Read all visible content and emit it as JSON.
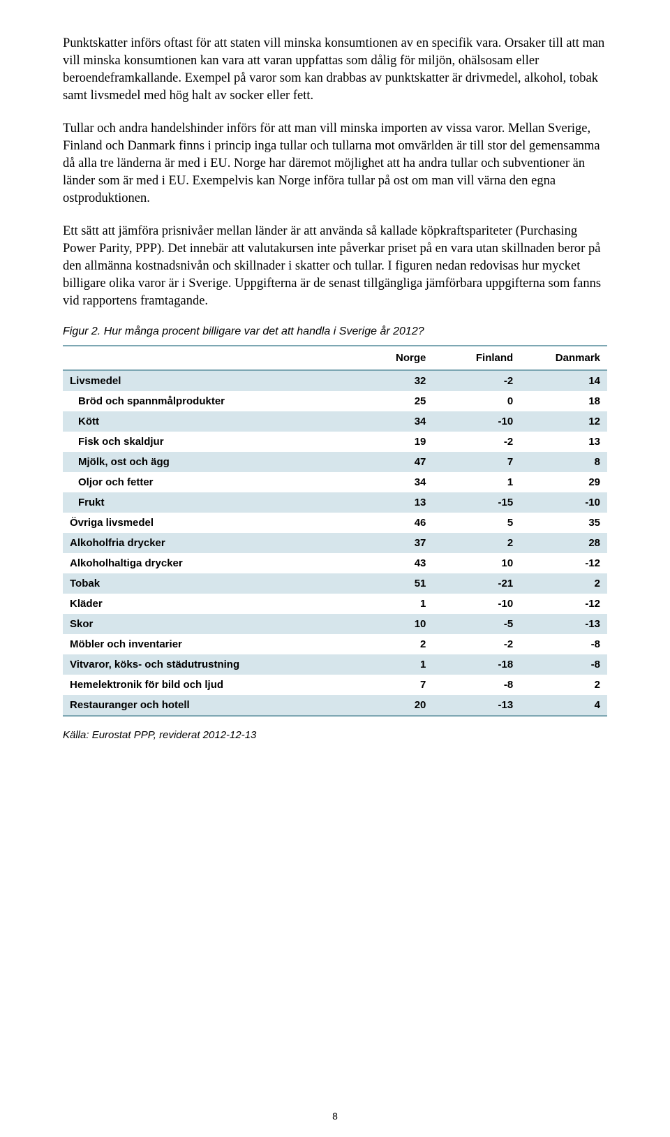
{
  "paragraphs": {
    "p1": "Punktskatter införs oftast för att staten vill minska konsumtionen av en specifik vara. Orsaker till att man vill minska konsumtionen kan vara att varan uppfattas som dålig för miljön, ohälsosam eller beroendeframkallande. Exempel på varor som kan drabbas av punktskatter är drivmedel, alkohol, tobak samt livsmedel med hög halt av socker eller fett.",
    "p2": "Tullar och andra handelshinder införs för att man vill minska importen av vissa varor. Mellan Sverige, Finland och Danmark finns i princip inga tullar och tullarna mot omvärlden är till stor del gemensamma då alla tre länderna är med i EU. Norge har däremot möjlighet att ha andra tullar och subventioner än länder som är med i EU. Exempelvis kan Norge införa tullar på ost om man vill värna den egna ostproduktionen.",
    "p3": "Ett sätt att jämföra prisnivåer mellan länder är att använda så kallade köpkraftspariteter (Purchasing Power Parity, PPP). Det innebär att valutakursen inte påverkar priset på en vara utan skillnaden beror på den allmänna kostnadsnivån och skillnader i skatter och tullar. I figuren nedan redovisas hur mycket billigare olika varor är i Sverige. Uppgifterna är de senast tillgängliga jämförbara uppgifterna som fanns vid rapportens framtagande."
  },
  "figure_caption": "Figur 2. Hur många procent billigare var det att handla i Sverige år 2012?",
  "table": {
    "type": "table",
    "columns": [
      "",
      "Norge",
      "Finland",
      "Danmark"
    ],
    "header_font_weight": "bold",
    "row_shade_color": "#d6e5eb",
    "border_color": "#7da7b3",
    "background_color": "#ffffff",
    "font_family": "Arial",
    "font_size_pt": 11,
    "rows": [
      {
        "label": "Livsmedel",
        "values": [
          "32",
          "-2",
          "14"
        ],
        "shaded": true,
        "bold": true,
        "indent": false
      },
      {
        "label": "Bröd och spannmålprodukter",
        "values": [
          "25",
          "0",
          "18"
        ],
        "shaded": false,
        "bold": true,
        "indent": true
      },
      {
        "label": "Kött",
        "values": [
          "34",
          "-10",
          "12"
        ],
        "shaded": true,
        "bold": true,
        "indent": true
      },
      {
        "label": "Fisk och skaldjur",
        "values": [
          "19",
          "-2",
          "13"
        ],
        "shaded": false,
        "bold": true,
        "indent": true
      },
      {
        "label": "Mjölk, ost och ägg",
        "values": [
          "47",
          "7",
          "8"
        ],
        "shaded": true,
        "bold": true,
        "indent": true
      },
      {
        "label": "Oljor och fetter",
        "values": [
          "34",
          "1",
          "29"
        ],
        "shaded": false,
        "bold": true,
        "indent": true
      },
      {
        "label": "Frukt",
        "values": [
          "13",
          "-15",
          "-10"
        ],
        "shaded": true,
        "bold": true,
        "indent": true
      },
      {
        "label": "Övriga livsmedel",
        "values": [
          "46",
          "5",
          "35"
        ],
        "shaded": false,
        "bold": true,
        "indent": false
      },
      {
        "label": "Alkoholfria drycker",
        "values": [
          "37",
          "2",
          "28"
        ],
        "shaded": true,
        "bold": true,
        "indent": false
      },
      {
        "label": "Alkoholhaltiga drycker",
        "values": [
          "43",
          "10",
          "-12"
        ],
        "shaded": false,
        "bold": true,
        "indent": false
      },
      {
        "label": "Tobak",
        "values": [
          "51",
          "-21",
          "2"
        ],
        "shaded": true,
        "bold": true,
        "indent": false
      },
      {
        "label": "Kläder",
        "values": [
          "1",
          "-10",
          "-12"
        ],
        "shaded": false,
        "bold": true,
        "indent": false
      },
      {
        "label": "Skor",
        "values": [
          "10",
          "-5",
          "-13"
        ],
        "shaded": true,
        "bold": true,
        "indent": false
      },
      {
        "label": "Möbler och inventarier",
        "values": [
          "2",
          "-2",
          "-8"
        ],
        "shaded": false,
        "bold": true,
        "indent": false
      },
      {
        "label": "Vitvaror, köks- och städutrustning",
        "values": [
          "1",
          "-18",
          "-8"
        ],
        "shaded": true,
        "bold": true,
        "indent": false
      },
      {
        "label": "Hemelektronik för bild och ljud",
        "values": [
          "7",
          "-8",
          "2"
        ],
        "shaded": false,
        "bold": true,
        "indent": false
      },
      {
        "label": "Restauranger och hotell",
        "values": [
          "20",
          "-13",
          "4"
        ],
        "shaded": true,
        "bold": true,
        "indent": false
      }
    ]
  },
  "source": "Källa: Eurostat PPP, reviderat 2012-12-13",
  "page_number": "8"
}
